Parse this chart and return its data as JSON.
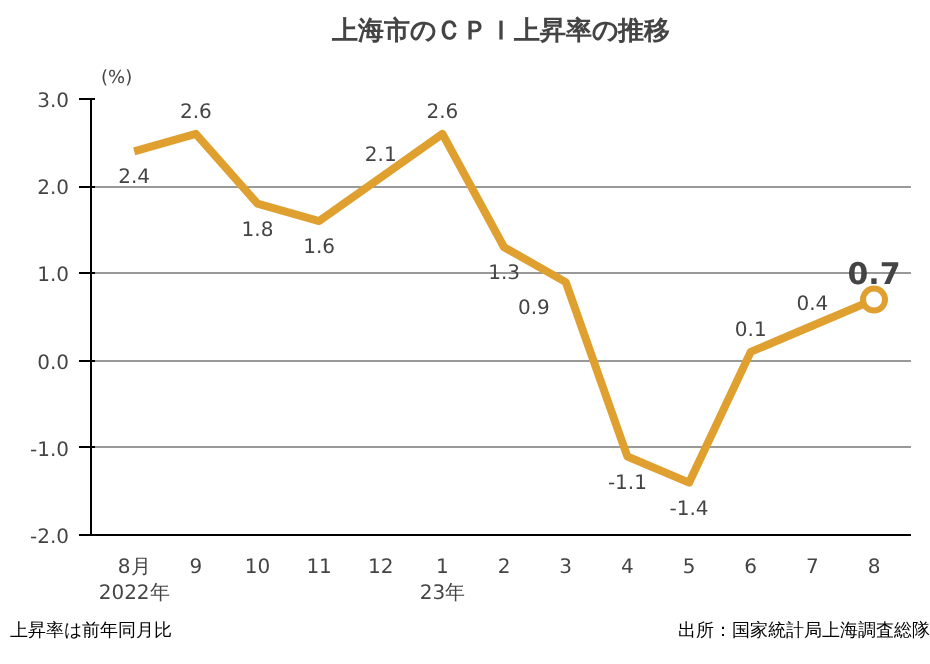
{
  "chart_data": {
    "type": "line",
    "title": "上海市のＣＰＩ上昇率の推移",
    "ylabel": "(%)",
    "categories": [
      "8月\n2022年",
      "9",
      "10",
      "11",
      "12",
      "1\n23年",
      "2",
      "3",
      "4",
      "5",
      "6",
      "7",
      "8"
    ],
    "series": [
      {
        "color": "#e0a030",
        "values": [
          2.4,
          2.6,
          1.8,
          1.6,
          2.1,
          2.6,
          1.3,
          0.9,
          -1.1,
          -1.4,
          0.1,
          0.4,
          0.7
        ]
      }
    ],
    "ylim": [
      -2,
      3
    ],
    "yticks": [
      {
        "value": 3,
        "label": "3.0"
      },
      {
        "value": 2,
        "label": "2.0"
      },
      {
        "value": 1,
        "label": "1.0"
      },
      {
        "value": 0,
        "label": "0.0"
      },
      {
        "value": -1,
        "label": "-1.0"
      },
      {
        "value": -2,
        "label": "-2.0"
      }
    ],
    "grid": "y",
    "marker": "none",
    "line_style": "solid",
    "data_labels": true,
    "annotations": [
      "上昇率は前年同月比",
      "出所：国家統計局上海調査総隊"
    ]
  }
}
